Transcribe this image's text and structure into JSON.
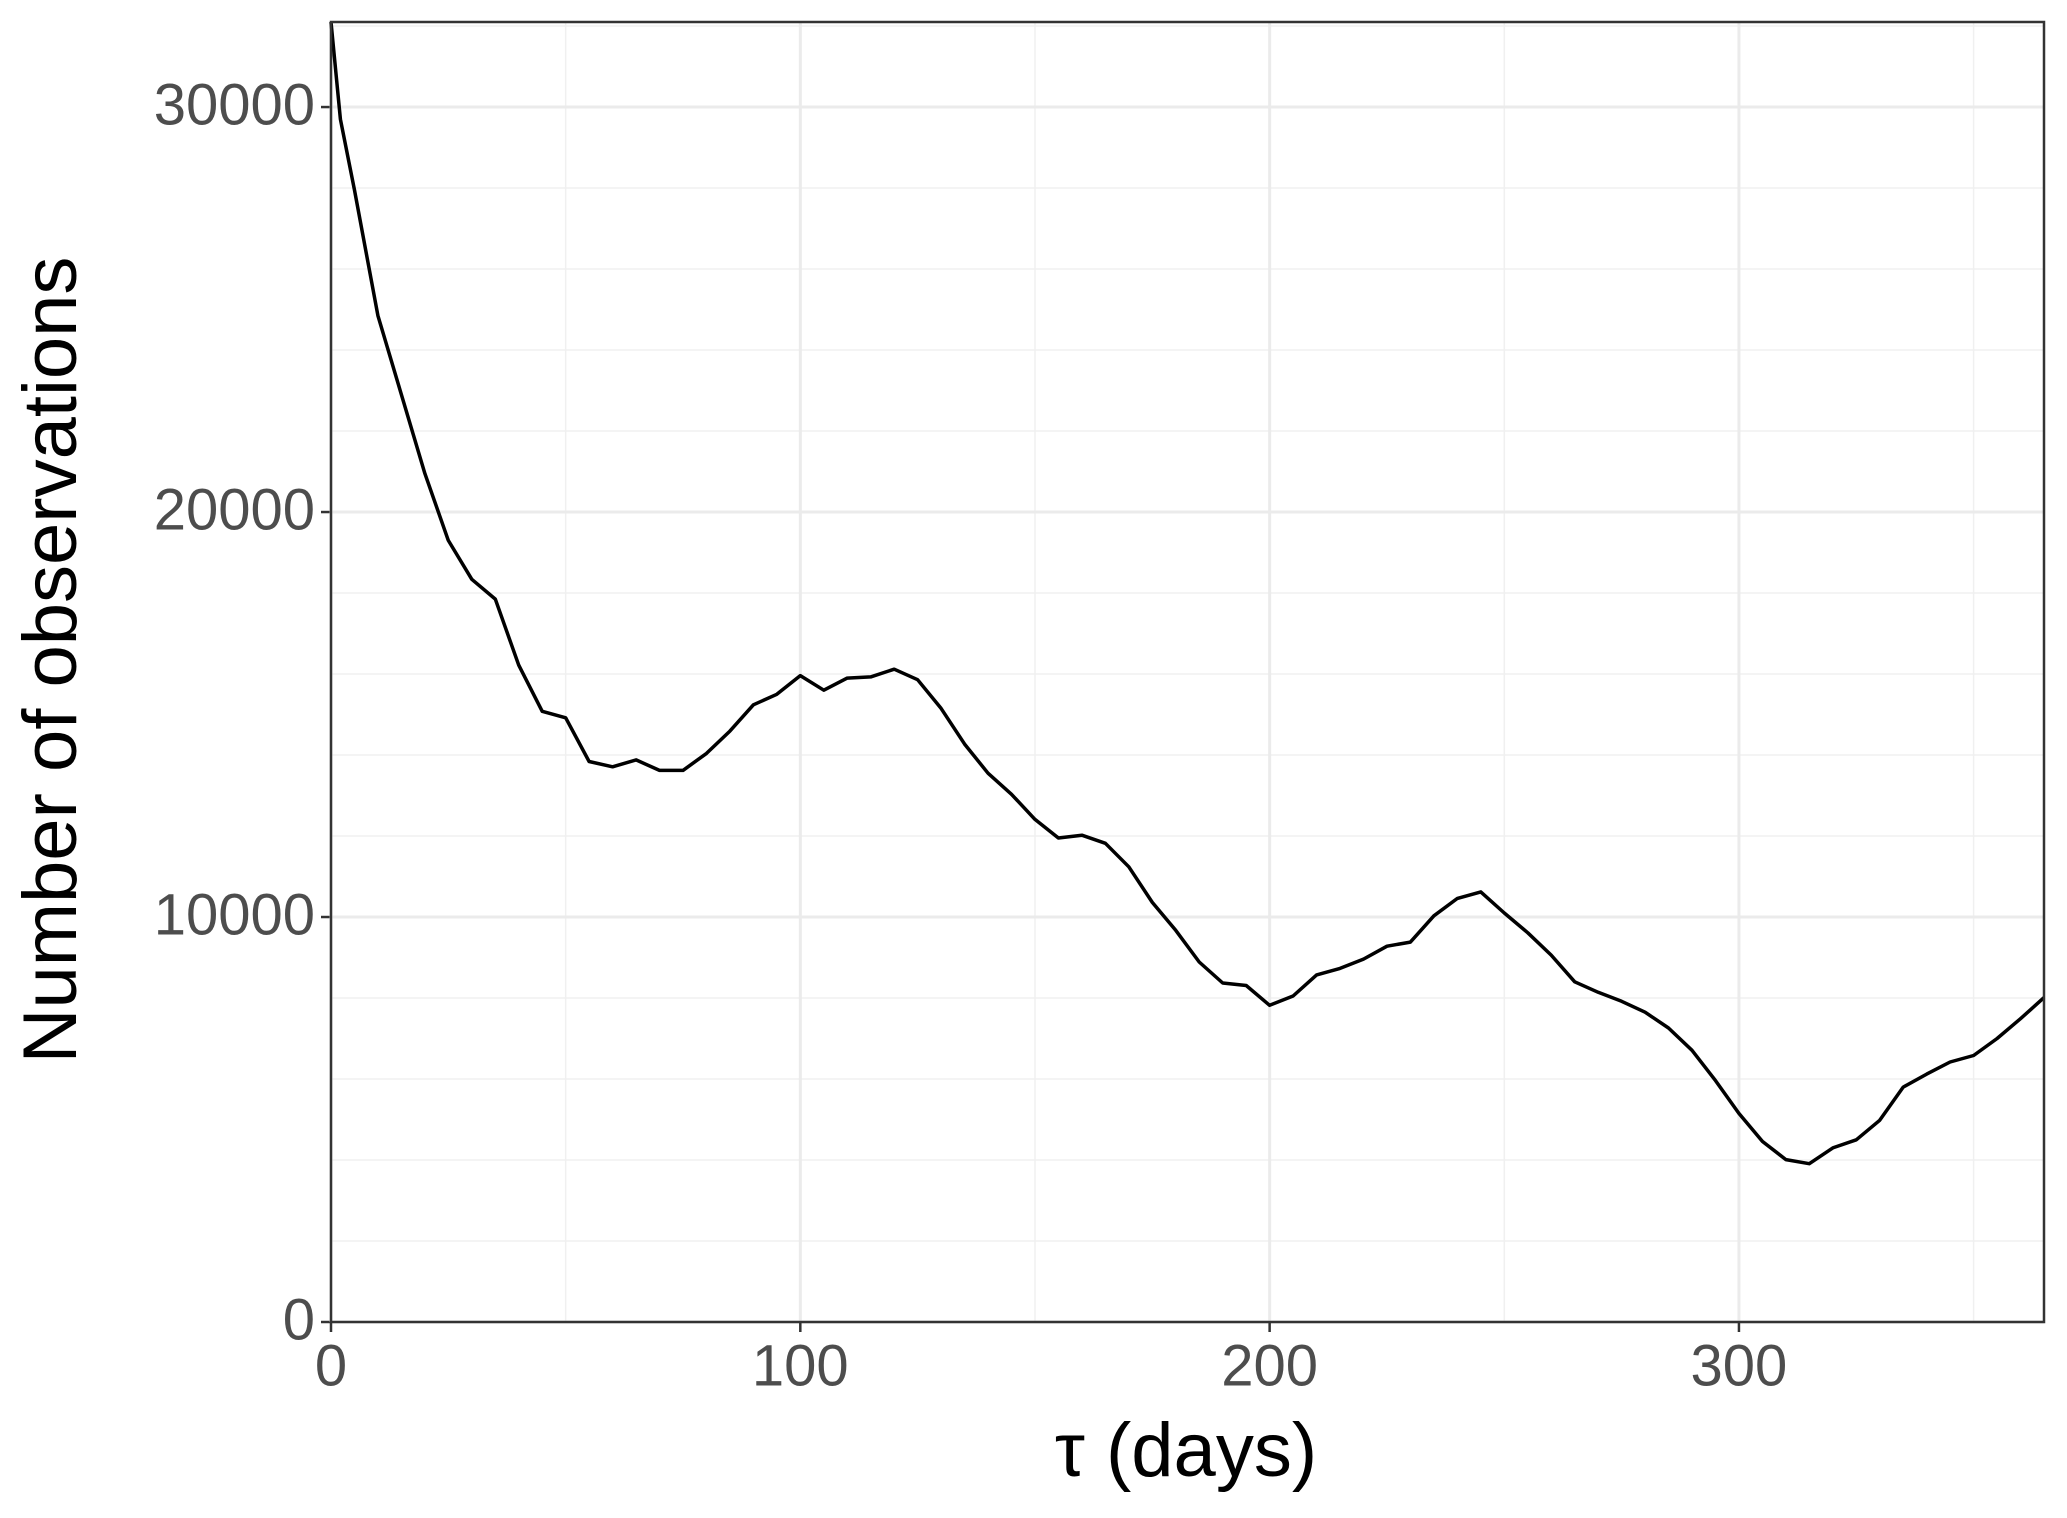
{
  "chart_data": {
    "type": "line",
    "x_label": "τ  (days)",
    "y_label": "Number of observations",
    "x": [
      0,
      2,
      5,
      10,
      15,
      20,
      25,
      30,
      35,
      40,
      45,
      50,
      55,
      60,
      65,
      70,
      75,
      80,
      85,
      90,
      95,
      100,
      105,
      110,
      115,
      120,
      125,
      130,
      135,
      140,
      145,
      150,
      155,
      160,
      165,
      170,
      175,
      180,
      185,
      190,
      195,
      200,
      205,
      210,
      215,
      220,
      225,
      230,
      235,
      240,
      245,
      250,
      255,
      260,
      265,
      270,
      275,
      280,
      285,
      290,
      295,
      300,
      305,
      310,
      315,
      320,
      325,
      330,
      335,
      340,
      345,
      350,
      355,
      360,
      365
    ],
    "series": [
      {
        "color": "#000000",
        "values": [
          32100,
          29700,
          27950,
          24850,
          22900,
          20950,
          19300,
          18340,
          17850,
          16220,
          15080,
          14920,
          13840,
          13710,
          13880,
          13620,
          13620,
          14040,
          14590,
          15240,
          15500,
          15960,
          15600,
          15900,
          15930,
          16120,
          15860,
          15150,
          14270,
          13550,
          13030,
          12410,
          11950,
          12020,
          11820,
          11240,
          10360,
          9670,
          8890,
          8370,
          8310,
          7820,
          8050,
          8570,
          8730,
          8960,
          9280,
          9380,
          10030,
          10460,
          10620,
          10100,
          9610,
          9060,
          8400,
          8140,
          7920,
          7650,
          7260,
          6710,
          5960,
          5150,
          4460,
          4010,
          3910,
          4300,
          4500,
          4980,
          5800,
          6120,
          6420,
          6580,
          7000,
          7490,
          8010
        ]
      }
    ],
    "xlim": [
      0,
      365
    ],
    "xticks": [
      0,
      100,
      200,
      300
    ],
    "x_minor_grid": [
      50,
      150,
      250,
      350
    ],
    "ylim": [
      0,
      32100
    ],
    "yticks": [
      0,
      10000,
      20000,
      30000
    ],
    "y_minor_grid": [
      2000,
      4000,
      6000,
      8000,
      12000,
      14000,
      16000,
      18000,
      22000,
      24000,
      26000,
      28000,
      32000
    ],
    "grid": true
  }
}
